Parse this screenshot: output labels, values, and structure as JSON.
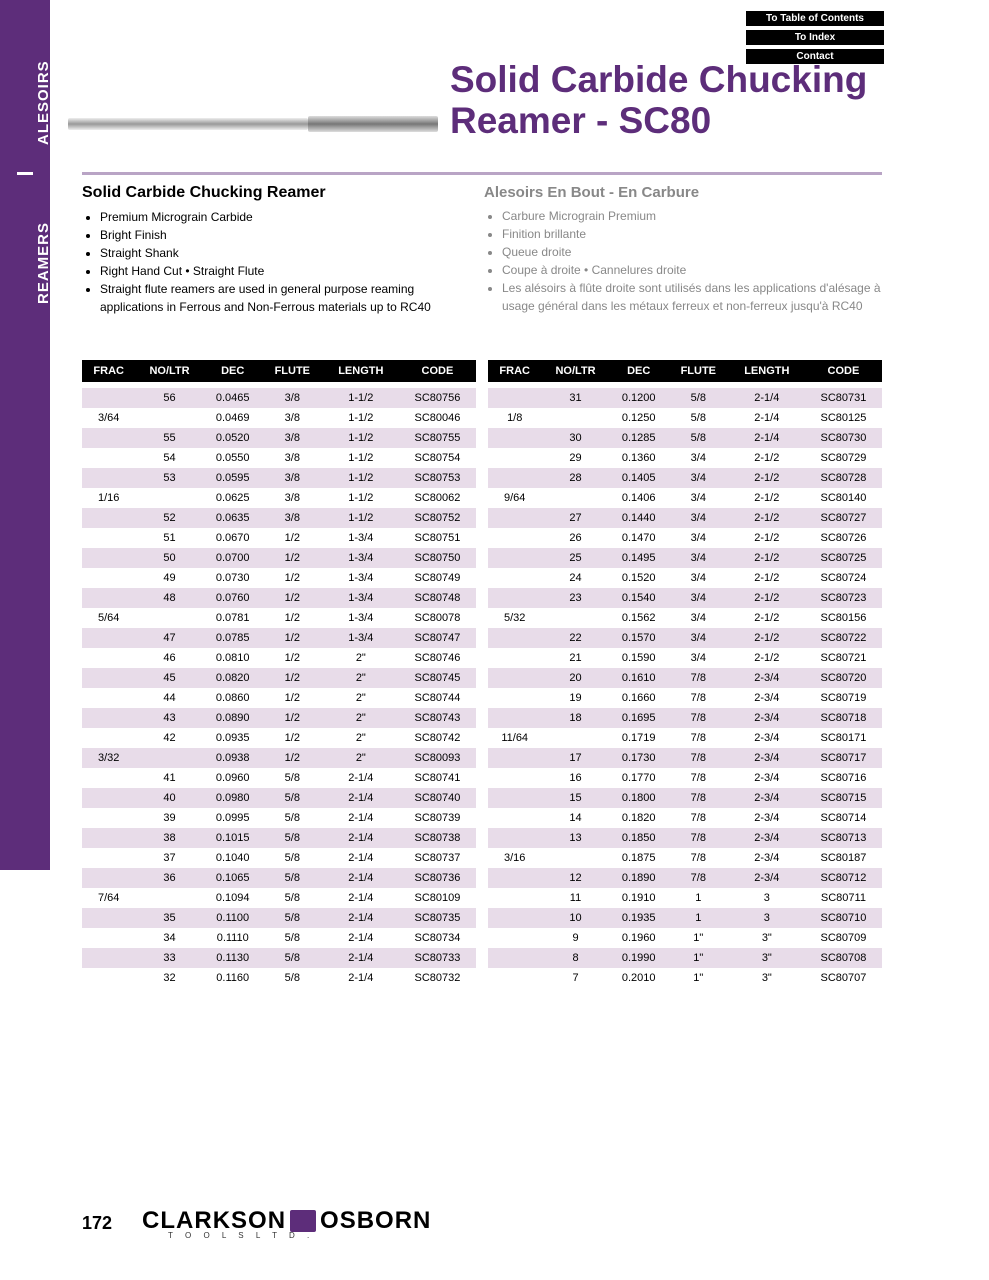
{
  "sidebar": {
    "label_a": "ALESOIRS",
    "label_r": "REAMERS"
  },
  "nav": {
    "toc": "To Table of Contents",
    "index": "To Index",
    "contact": "Contact"
  },
  "title": "Solid Carbide Chucking Reamer - SC80",
  "en": {
    "heading": "Solid Carbide Chucking Reamer",
    "bullets": [
      "Premium Micrograin Carbide",
      "Bright Finish",
      "Straight Shank",
      "Right Hand Cut  •  Straight Flute",
      "Straight flute reamers are used in general purpose reaming applications in Ferrous and Non-Ferrous materials up to RC40"
    ]
  },
  "fr": {
    "heading": "Alesoirs En Bout - En Carbure",
    "bullets": [
      "Carbure Micrograin Premium",
      "Finition brillante",
      "Queue droite",
      "Coupe à droite  •  Cannelures droite",
      "Les alésoirs à flûte droite sont utilisés dans les applications d'alésage à usage général dans les métaux ferreux et non-ferreux jusqu'à RC40"
    ]
  },
  "columns": [
    "FRAC",
    "NO/LTR",
    "DEC",
    "FLUTE",
    "LENGTH",
    "CODE"
  ],
  "table_left": [
    [
      "",
      "56",
      "0.0465",
      "3/8",
      "1-1/2",
      "SC80756"
    ],
    [
      "3/64",
      "",
      "0.0469",
      "3/8",
      "1-1/2",
      "SC80046"
    ],
    [
      "",
      "55",
      "0.0520",
      "3/8",
      "1-1/2",
      "SC80755"
    ],
    [
      "",
      "54",
      "0.0550",
      "3/8",
      "1-1/2",
      "SC80754"
    ],
    [
      "",
      "53",
      "0.0595",
      "3/8",
      "1-1/2",
      "SC80753"
    ],
    [
      "1/16",
      "",
      "0.0625",
      "3/8",
      "1-1/2",
      "SC80062"
    ],
    [
      "",
      "52",
      "0.0635",
      "3/8",
      "1-1/2",
      "SC80752"
    ],
    [
      "",
      "51",
      "0.0670",
      "1/2",
      "1-3/4",
      "SC80751"
    ],
    [
      "",
      "50",
      "0.0700",
      "1/2",
      "1-3/4",
      "SC80750"
    ],
    [
      "",
      "49",
      "0.0730",
      "1/2",
      "1-3/4",
      "SC80749"
    ],
    [
      "",
      "48",
      "0.0760",
      "1/2",
      "1-3/4",
      "SC80748"
    ],
    [
      "5/64",
      "",
      "0.0781",
      "1/2",
      "1-3/4",
      "SC80078"
    ],
    [
      "",
      "47",
      "0.0785",
      "1/2",
      "1-3/4",
      "SC80747"
    ],
    [
      "",
      "46",
      "0.0810",
      "1/2",
      "2\"",
      "SC80746"
    ],
    [
      "",
      "45",
      "0.0820",
      "1/2",
      "2\"",
      "SC80745"
    ],
    [
      "",
      "44",
      "0.0860",
      "1/2",
      "2\"",
      "SC80744"
    ],
    [
      "",
      "43",
      "0.0890",
      "1/2",
      "2\"",
      "SC80743"
    ],
    [
      "",
      "42",
      "0.0935",
      "1/2",
      "2\"",
      "SC80742"
    ],
    [
      "3/32",
      "",
      "0.0938",
      "1/2",
      "2\"",
      "SC80093"
    ],
    [
      "",
      "41",
      "0.0960",
      "5/8",
      "2-1/4",
      "SC80741"
    ],
    [
      "",
      "40",
      "0.0980",
      "5/8",
      "2-1/4",
      "SC80740"
    ],
    [
      "",
      "39",
      "0.0995",
      "5/8",
      "2-1/4",
      "SC80739"
    ],
    [
      "",
      "38",
      "0.1015",
      "5/8",
      "2-1/4",
      "SC80738"
    ],
    [
      "",
      "37",
      "0.1040",
      "5/8",
      "2-1/4",
      "SC80737"
    ],
    [
      "",
      "36",
      "0.1065",
      "5/8",
      "2-1/4",
      "SC80736"
    ],
    [
      "7/64",
      "",
      "0.1094",
      "5/8",
      "2-1/4",
      "SC80109"
    ],
    [
      "",
      "35",
      "0.1100",
      "5/8",
      "2-1/4",
      "SC80735"
    ],
    [
      "",
      "34",
      "0.1110",
      "5/8",
      "2-1/4",
      "SC80734"
    ],
    [
      "",
      "33",
      "0.1130",
      "5/8",
      "2-1/4",
      "SC80733"
    ],
    [
      "",
      "32",
      "0.1160",
      "5/8",
      "2-1/4",
      "SC80732"
    ]
  ],
  "table_right": [
    [
      "",
      "31",
      "0.1200",
      "5/8",
      "2-1/4",
      "SC80731"
    ],
    [
      "1/8",
      "",
      "0.1250",
      "5/8",
      "2-1/4",
      "SC80125"
    ],
    [
      "",
      "30",
      "0.1285",
      "5/8",
      "2-1/4",
      "SC80730"
    ],
    [
      "",
      "29",
      "0.1360",
      "3/4",
      "2-1/2",
      "SC80729"
    ],
    [
      "",
      "28",
      "0.1405",
      "3/4",
      "2-1/2",
      "SC80728"
    ],
    [
      "9/64",
      "",
      "0.1406",
      "3/4",
      "2-1/2",
      "SC80140"
    ],
    [
      "",
      "27",
      "0.1440",
      "3/4",
      "2-1/2",
      "SC80727"
    ],
    [
      "",
      "26",
      "0.1470",
      "3/4",
      "2-1/2",
      "SC80726"
    ],
    [
      "",
      "25",
      "0.1495",
      "3/4",
      "2-1/2",
      "SC80725"
    ],
    [
      "",
      "24",
      "0.1520",
      "3/4",
      "2-1/2",
      "SC80724"
    ],
    [
      "",
      "23",
      "0.1540",
      "3/4",
      "2-1/2",
      "SC80723"
    ],
    [
      "5/32",
      "",
      "0.1562",
      "3/4",
      "2-1/2",
      "SC80156"
    ],
    [
      "",
      "22",
      "0.1570",
      "3/4",
      "2-1/2",
      "SC80722"
    ],
    [
      "",
      "21",
      "0.1590",
      "3/4",
      "2-1/2",
      "SC80721"
    ],
    [
      "",
      "20",
      "0.1610",
      "7/8",
      "2-3/4",
      "SC80720"
    ],
    [
      "",
      "19",
      "0.1660",
      "7/8",
      "2-3/4",
      "SC80719"
    ],
    [
      "",
      "18",
      "0.1695",
      "7/8",
      "2-3/4",
      "SC80718"
    ],
    [
      "11/64",
      "",
      "0.1719",
      "7/8",
      "2-3/4",
      "SC80171"
    ],
    [
      "",
      "17",
      "0.1730",
      "7/8",
      "2-3/4",
      "SC80717"
    ],
    [
      "",
      "16",
      "0.1770",
      "7/8",
      "2-3/4",
      "SC80716"
    ],
    [
      "",
      "15",
      "0.1800",
      "7/8",
      "2-3/4",
      "SC80715"
    ],
    [
      "",
      "14",
      "0.1820",
      "7/8",
      "2-3/4",
      "SC80714"
    ],
    [
      "",
      "13",
      "0.1850",
      "7/8",
      "2-3/4",
      "SC80713"
    ],
    [
      "3/16",
      "",
      "0.1875",
      "7/8",
      "2-3/4",
      "SC80187"
    ],
    [
      "",
      "12",
      "0.1890",
      "7/8",
      "2-3/4",
      "SC80712"
    ],
    [
      "",
      "11",
      "0.1910",
      "1",
      "3",
      "SC80711"
    ],
    [
      "",
      "10",
      "0.1935",
      "1",
      "3",
      "SC80710"
    ],
    [
      "",
      "9",
      "0.1960",
      "1\"",
      "3\"",
      "SC80709"
    ],
    [
      "",
      "8",
      "0.1990",
      "1\"",
      "3\"",
      "SC80708"
    ],
    [
      "",
      "7",
      "0.2010",
      "1\"",
      "3\"",
      "SC80707"
    ]
  ],
  "colors": {
    "accent": "#5d2d7a",
    "row_shade": "#e8dce9",
    "header_bg": "#000000",
    "muted": "#888888"
  },
  "footer": {
    "page": "172",
    "brand1": "CLARKSON",
    "brand2": "OSBORN",
    "brand_sub": "T O O L S   L T D ."
  }
}
